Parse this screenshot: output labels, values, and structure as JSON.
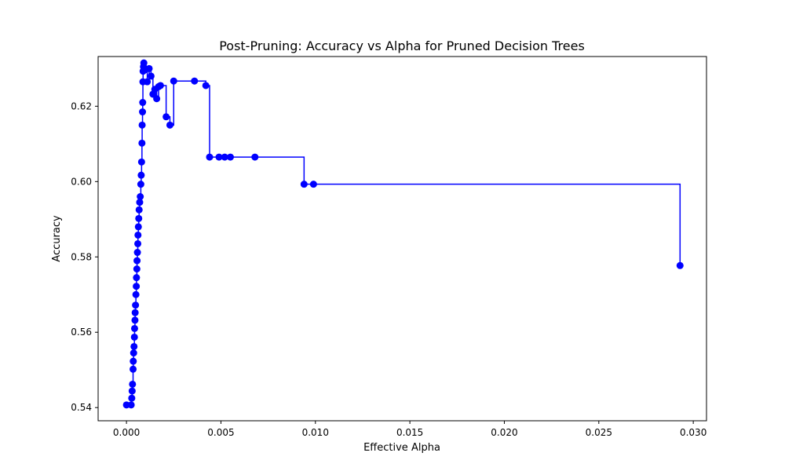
{
  "chart_data": {
    "type": "line",
    "title": "Post-Pruning: Accuracy vs Alpha for Pruned Decision Trees",
    "xlabel": "Effective Alpha",
    "ylabel": "Accuracy",
    "xlim": [
      -0.0015,
      0.0307
    ],
    "ylim": [
      0.5365,
      0.6332
    ],
    "x_ticks": [
      0.0,
      0.005,
      0.01,
      0.015,
      0.02,
      0.025,
      0.03
    ],
    "x_tick_labels": [
      "0.000",
      "0.005",
      "0.010",
      "0.015",
      "0.020",
      "0.025",
      "0.030"
    ],
    "y_ticks": [
      0.54,
      0.56,
      0.58,
      0.6,
      0.62
    ],
    "y_tick_labels": [
      "0.54",
      "0.56",
      "0.58",
      "0.60",
      "0.62"
    ],
    "drawstyle": "steps-post",
    "marker": "circle",
    "grid": false,
    "series": [
      {
        "color": "#0000ff",
        "points": [
          [
            0.0,
            0.5407
          ],
          [
            0.00025,
            0.5407
          ],
          [
            0.00028,
            0.5425
          ],
          [
            0.0003,
            0.5444
          ],
          [
            0.00032,
            0.5462
          ],
          [
            0.00035,
            0.5502
          ],
          [
            0.00036,
            0.5523
          ],
          [
            0.00038,
            0.5545
          ],
          [
            0.0004,
            0.5562
          ],
          [
            0.00042,
            0.5587
          ],
          [
            0.00043,
            0.561
          ],
          [
            0.00045,
            0.5632
          ],
          [
            0.00046,
            0.5652
          ],
          [
            0.00048,
            0.5672
          ],
          [
            0.0005,
            0.57
          ],
          [
            0.00052,
            0.5722
          ],
          [
            0.00053,
            0.5745
          ],
          [
            0.00055,
            0.5768
          ],
          [
            0.00056,
            0.579
          ],
          [
            0.00058,
            0.5812
          ],
          [
            0.0006,
            0.5835
          ],
          [
            0.00061,
            0.5858
          ],
          [
            0.00063,
            0.588
          ],
          [
            0.00065,
            0.5902
          ],
          [
            0.00067,
            0.5925
          ],
          [
            0.0007,
            0.5945
          ],
          [
            0.00073,
            0.596
          ],
          [
            0.00076,
            0.5993
          ],
          [
            0.00078,
            0.6017
          ],
          [
            0.0008,
            0.6052
          ],
          [
            0.00082,
            0.6102
          ],
          [
            0.00083,
            0.615
          ],
          [
            0.00085,
            0.6185
          ],
          [
            0.00086,
            0.621
          ],
          [
            0.00087,
            0.6265
          ],
          [
            0.00088,
            0.6293
          ],
          [
            0.0009,
            0.6305
          ],
          [
            0.00092,
            0.6315
          ],
          [
            0.001,
            0.6297
          ],
          [
            0.0011,
            0.6265
          ],
          [
            0.0012,
            0.63
          ],
          [
            0.0013,
            0.628
          ],
          [
            0.0014,
            0.6232
          ],
          [
            0.0015,
            0.6245
          ],
          [
            0.0016,
            0.622
          ],
          [
            0.0017,
            0.6252
          ],
          [
            0.0018,
            0.6255
          ],
          [
            0.0021,
            0.6172
          ],
          [
            0.0023,
            0.615
          ],
          [
            0.0025,
            0.6267
          ],
          [
            0.0036,
            0.6267
          ],
          [
            0.0042,
            0.6255
          ],
          [
            0.0044,
            0.6065
          ],
          [
            0.0049,
            0.6065
          ],
          [
            0.0052,
            0.6065
          ],
          [
            0.0055,
            0.6065
          ],
          [
            0.0068,
            0.6065
          ],
          [
            0.0094,
            0.5993
          ],
          [
            0.0099,
            0.5993
          ],
          [
            0.0293,
            0.5777
          ]
        ]
      }
    ]
  }
}
